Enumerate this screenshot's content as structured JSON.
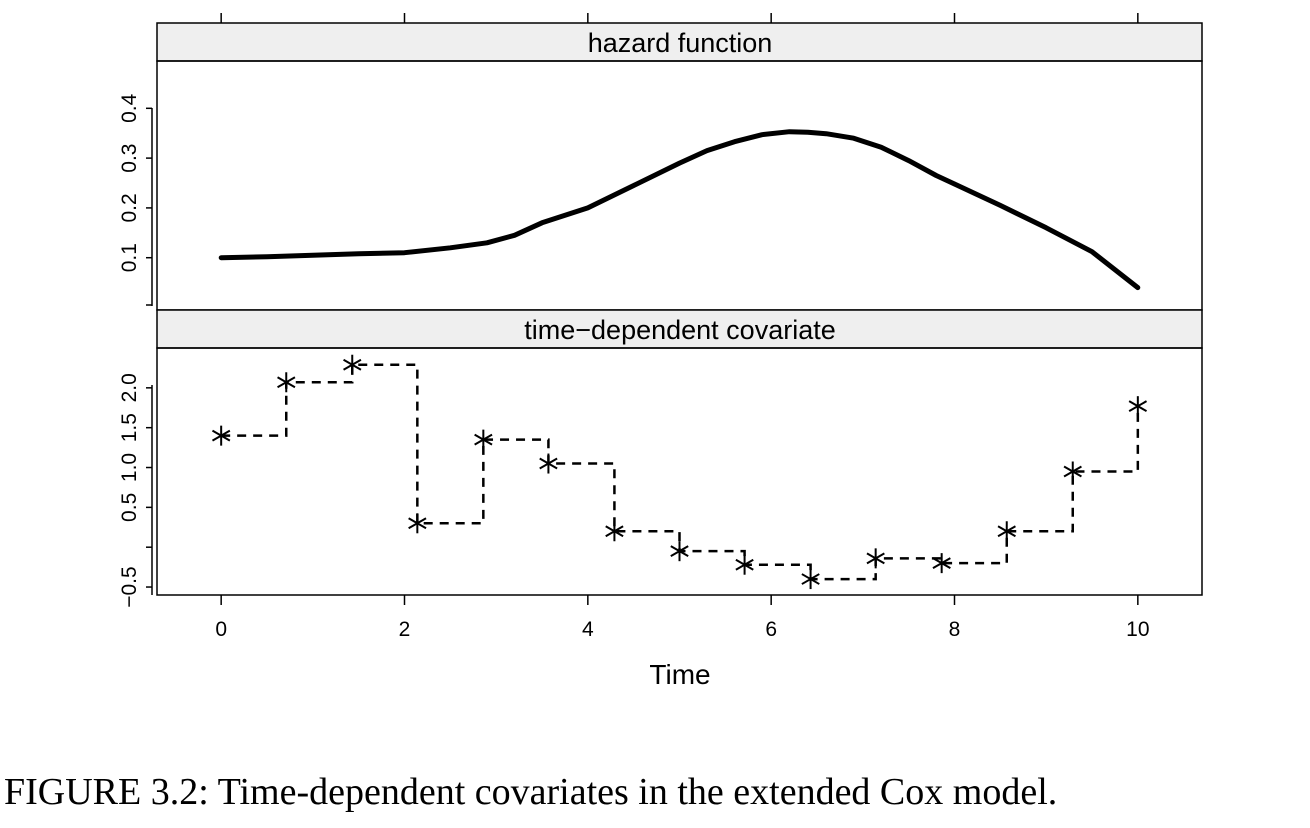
{
  "chart_data": [
    {
      "type": "line",
      "title": "hazard function",
      "xlabel": "Time",
      "ylabel": "",
      "xlim": [
        -0.7,
        10.7
      ],
      "ylim": [
        -0.005,
        0.495
      ],
      "x_ticks": [
        0,
        2,
        4,
        6,
        8,
        10
      ],
      "y_ticks": [
        0.1,
        0.2,
        0.3,
        0.4
      ],
      "y_tick_labels": [
        "0.1",
        "0.2",
        "0.3",
        "0.4"
      ],
      "x": [
        0,
        0.5,
        1,
        1.5,
        2,
        2.5,
        2.9,
        3.2,
        3.5,
        4,
        4.5,
        5,
        5.3,
        5.6,
        5.9,
        6.2,
        6.4,
        6.6,
        6.9,
        7.2,
        7.5,
        7.8,
        8,
        8.5,
        9,
        9.5,
        10
      ],
      "values": [
        0.1,
        0.102,
        0.105,
        0.108,
        0.11,
        0.12,
        0.13,
        0.145,
        0.17,
        0.2,
        0.245,
        0.29,
        0.315,
        0.333,
        0.347,
        0.353,
        0.352,
        0.349,
        0.34,
        0.322,
        0.295,
        0.265,
        0.248,
        0.205,
        0.16,
        0.112,
        0.04
      ],
      "style": "solid"
    },
    {
      "type": "line",
      "title": "time−dependent covariate",
      "xlabel": "Time",
      "ylabel": "",
      "xlim": [
        -0.7,
        10.7
      ],
      "ylim": [
        -0.6,
        2.5
      ],
      "x_ticks": [
        0,
        2,
        4,
        6,
        8,
        10
      ],
      "y_ticks": [
        -0.5,
        0.5,
        1.0,
        1.5,
        2.0
      ],
      "y_tick_labels": [
        "−0.5",
        "0.5",
        "1.0",
        "1.5",
        "2.0"
      ],
      "step": "post",
      "marker": "asterisk",
      "style": "dashed",
      "x": [
        0,
        0.71,
        1.43,
        2.14,
        2.86,
        3.57,
        4.29,
        5.0,
        5.71,
        6.43,
        7.14,
        7.86,
        8.57,
        9.29,
        10
      ],
      "values": [
        1.4,
        2.07,
        2.29,
        0.3,
        1.35,
        1.05,
        0.2,
        -0.05,
        -0.22,
        -0.4,
        -0.14,
        -0.2,
        0.2,
        0.95,
        1.77
      ]
    }
  ],
  "caption": "FIGURE 3.2: Time-dependent covariates in the extended Cox model."
}
